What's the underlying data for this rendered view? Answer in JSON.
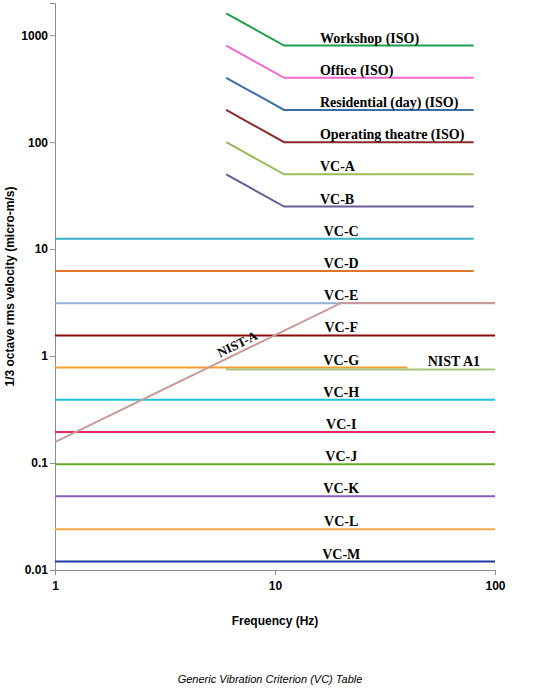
{
  "chart_data": {
    "type": "line",
    "title": "Generic Vibration Criterion (VC) Table",
    "x_label": "Frequency (Hz)",
    "y_label": "1/3 octave rms velocity (micro-m/s)",
    "log": true,
    "grid": false,
    "xlim": [
      1,
      100
    ],
    "ylim": [
      0.01,
      2000
    ],
    "xticks": [
      1,
      10,
      100
    ],
    "yticks": [
      0.01,
      0.1,
      1,
      10,
      100,
      1000
    ],
    "series": [
      {
        "name": "Workshop (ISO)",
        "color": "#1e9e4a",
        "x": [
          6,
          11,
          80
        ],
        "values": [
          1600,
          800,
          800
        ]
      },
      {
        "name": "Office (ISO)",
        "color": "#f06ad0",
        "x": [
          6,
          11,
          80
        ],
        "values": [
          800,
          400,
          400
        ]
      },
      {
        "name": "Residential (day) (ISO)",
        "color": "#3a6ea8",
        "x": [
          6,
          11,
          80
        ],
        "values": [
          400,
          200,
          200
        ]
      },
      {
        "name": "Operating theatre (ISO)",
        "color": "#8b2a2a",
        "x": [
          6,
          11,
          80
        ],
        "values": [
          200,
          100,
          100
        ]
      },
      {
        "name": "VC-A",
        "color": "#9bbb59",
        "x": [
          6,
          11,
          80
        ],
        "values": [
          100,
          50,
          50
        ]
      },
      {
        "name": "VC-B",
        "color": "#6a5a96",
        "x": [
          6,
          11,
          80
        ],
        "values": [
          50,
          25,
          25
        ]
      },
      {
        "name": "VC-C",
        "color": "#3ab0c4",
        "x": [
          1,
          80
        ],
        "values": [
          12.5,
          12.5
        ]
      },
      {
        "name": "VC-D",
        "color": "#e0762a",
        "x": [
          1,
          80
        ],
        "values": [
          6.25,
          6.25
        ]
      },
      {
        "name": "VC-E",
        "color": "#95b0d8",
        "x": [
          1,
          100
        ],
        "values": [
          3.12,
          3.12
        ]
      },
      {
        "name": "VC-F",
        "color": "#8b0a0a",
        "x": [
          1,
          100
        ],
        "values": [
          1.56,
          1.56
        ]
      },
      {
        "name": "VC-G",
        "color": "#f0a030",
        "x": [
          1,
          40
        ],
        "values": [
          0.78,
          0.78
        ]
      },
      {
        "name": "VC-H",
        "color": "#22c3d8",
        "x": [
          1,
          100
        ],
        "values": [
          0.39,
          0.39
        ]
      },
      {
        "name": "VC-I",
        "color": "#e8285a",
        "x": [
          1,
          100
        ],
        "values": [
          0.195,
          0.195
        ]
      },
      {
        "name": "VC-J",
        "color": "#6aa828",
        "x": [
          1,
          100
        ],
        "values": [
          0.0975,
          0.0975
        ]
      },
      {
        "name": "VC-K",
        "color": "#8a5cc0",
        "x": [
          1,
          100
        ],
        "values": [
          0.049,
          0.049
        ]
      },
      {
        "name": "VC-L",
        "color": "#f8a848",
        "x": [
          1,
          100
        ],
        "values": [
          0.024,
          0.024
        ]
      },
      {
        "name": "VC-M",
        "color": "#1a3aa0",
        "x": [
          1,
          100
        ],
        "values": [
          0.012,
          0.012
        ]
      },
      {
        "name": "NIST-A",
        "color": "#c89a9a",
        "x": [
          1,
          20,
          100
        ],
        "values": [
          0.157,
          3.14,
          3.14
        ]
      },
      {
        "name": "NIST A1",
        "color": "#a8c47a",
        "x": [
          6,
          100
        ],
        "values": [
          0.75,
          0.75
        ]
      }
    ]
  }
}
